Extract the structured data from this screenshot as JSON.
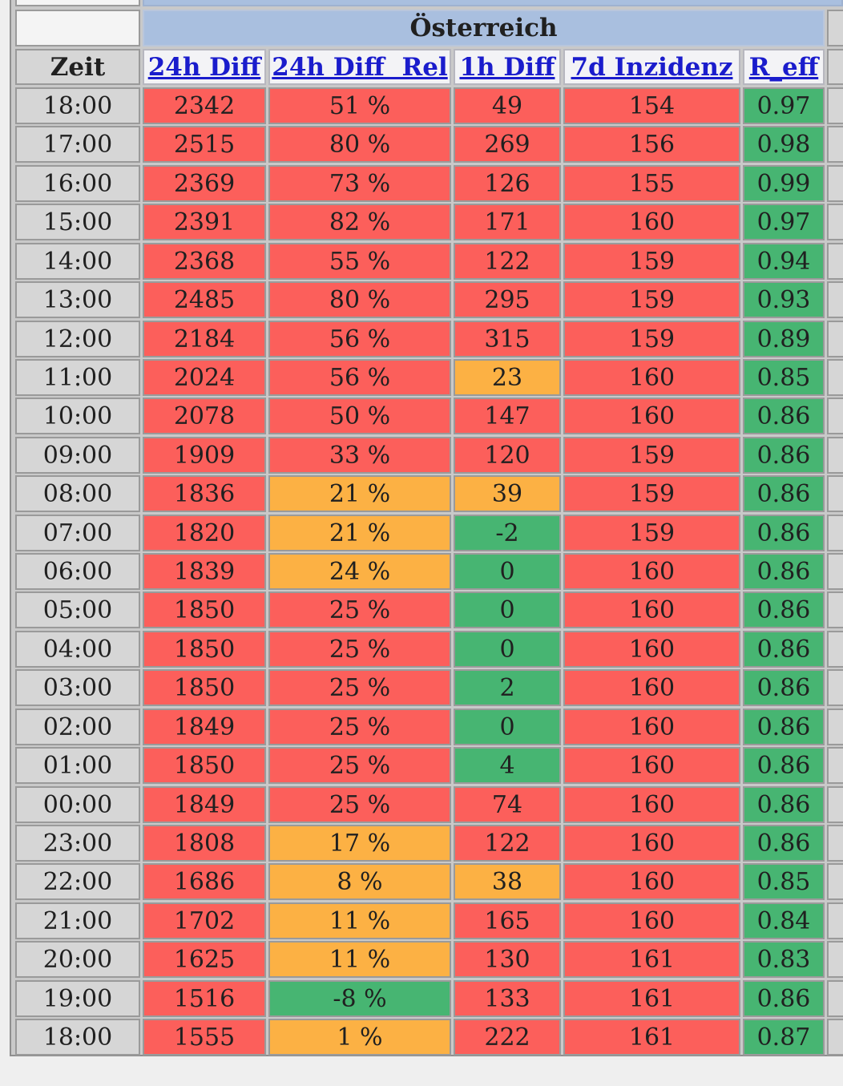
{
  "region_title": "Österreich",
  "columns": {
    "zeit": "Zeit",
    "diff24": "24h Diff",
    "diff24rel": "24h Diff  Rel",
    "diff1h": "1h Diff",
    "inzidenz7d": "7d Inzidenz",
    "reff": "R_eff"
  },
  "colors": {
    "red": "#fc5f5b",
    "orange": "#fcb144",
    "green": "#47b572",
    "header_blue": "#a9bfdf",
    "link_blue": "#1a1ccc"
  },
  "rows": [
    {
      "zeit": "18:00",
      "diff24": "2342",
      "diff24rel": "51 %",
      "diff1h": "49",
      "inzidenz7d": "154",
      "reff": "0.97",
      "c": [
        "red",
        "red",
        "red",
        "red",
        "green"
      ]
    },
    {
      "zeit": "17:00",
      "diff24": "2515",
      "diff24rel": "80 %",
      "diff1h": "269",
      "inzidenz7d": "156",
      "reff": "0.98",
      "c": [
        "red",
        "red",
        "red",
        "red",
        "green"
      ]
    },
    {
      "zeit": "16:00",
      "diff24": "2369",
      "diff24rel": "73 %",
      "diff1h": "126",
      "inzidenz7d": "155",
      "reff": "0.99",
      "c": [
        "red",
        "red",
        "red",
        "red",
        "green"
      ]
    },
    {
      "zeit": "15:00",
      "diff24": "2391",
      "diff24rel": "82 %",
      "diff1h": "171",
      "inzidenz7d": "160",
      "reff": "0.97",
      "c": [
        "red",
        "red",
        "red",
        "red",
        "green"
      ]
    },
    {
      "zeit": "14:00",
      "diff24": "2368",
      "diff24rel": "55 %",
      "diff1h": "122",
      "inzidenz7d": "159",
      "reff": "0.94",
      "c": [
        "red",
        "red",
        "red",
        "red",
        "green"
      ]
    },
    {
      "zeit": "13:00",
      "diff24": "2485",
      "diff24rel": "80 %",
      "diff1h": "295",
      "inzidenz7d": "159",
      "reff": "0.93",
      "c": [
        "red",
        "red",
        "red",
        "red",
        "green"
      ]
    },
    {
      "zeit": "12:00",
      "diff24": "2184",
      "diff24rel": "56 %",
      "diff1h": "315",
      "inzidenz7d": "159",
      "reff": "0.89",
      "c": [
        "red",
        "red",
        "red",
        "red",
        "green"
      ]
    },
    {
      "zeit": "11:00",
      "diff24": "2024",
      "diff24rel": "56 %",
      "diff1h": "23",
      "inzidenz7d": "160",
      "reff": "0.85",
      "c": [
        "red",
        "red",
        "orange",
        "red",
        "green"
      ]
    },
    {
      "zeit": "10:00",
      "diff24": "2078",
      "diff24rel": "50 %",
      "diff1h": "147",
      "inzidenz7d": "160",
      "reff": "0.86",
      "c": [
        "red",
        "red",
        "red",
        "red",
        "green"
      ]
    },
    {
      "zeit": "09:00",
      "diff24": "1909",
      "diff24rel": "33 %",
      "diff1h": "120",
      "inzidenz7d": "159",
      "reff": "0.86",
      "c": [
        "red",
        "red",
        "red",
        "red",
        "green"
      ]
    },
    {
      "zeit": "08:00",
      "diff24": "1836",
      "diff24rel": "21 %",
      "diff1h": "39",
      "inzidenz7d": "159",
      "reff": "0.86",
      "c": [
        "red",
        "orange",
        "orange",
        "red",
        "green"
      ]
    },
    {
      "zeit": "07:00",
      "diff24": "1820",
      "diff24rel": "21 %",
      "diff1h": "-2",
      "inzidenz7d": "159",
      "reff": "0.86",
      "c": [
        "red",
        "orange",
        "green",
        "red",
        "green"
      ]
    },
    {
      "zeit": "06:00",
      "diff24": "1839",
      "diff24rel": "24 %",
      "diff1h": "0",
      "inzidenz7d": "160",
      "reff": "0.86",
      "c": [
        "red",
        "orange",
        "green",
        "red",
        "green"
      ]
    },
    {
      "zeit": "05:00",
      "diff24": "1850",
      "diff24rel": "25 %",
      "diff1h": "0",
      "inzidenz7d": "160",
      "reff": "0.86",
      "c": [
        "red",
        "red",
        "green",
        "red",
        "green"
      ]
    },
    {
      "zeit": "04:00",
      "diff24": "1850",
      "diff24rel": "25 %",
      "diff1h": "0",
      "inzidenz7d": "160",
      "reff": "0.86",
      "c": [
        "red",
        "red",
        "green",
        "red",
        "green"
      ]
    },
    {
      "zeit": "03:00",
      "diff24": "1850",
      "diff24rel": "25 %",
      "diff1h": "2",
      "inzidenz7d": "160",
      "reff": "0.86",
      "c": [
        "red",
        "red",
        "green",
        "red",
        "green"
      ]
    },
    {
      "zeit": "02:00",
      "diff24": "1849",
      "diff24rel": "25 %",
      "diff1h": "0",
      "inzidenz7d": "160",
      "reff": "0.86",
      "c": [
        "red",
        "red",
        "green",
        "red",
        "green"
      ]
    },
    {
      "zeit": "01:00",
      "diff24": "1850",
      "diff24rel": "25 %",
      "diff1h": "4",
      "inzidenz7d": "160",
      "reff": "0.86",
      "c": [
        "red",
        "red",
        "green",
        "red",
        "green"
      ]
    },
    {
      "zeit": "00:00",
      "diff24": "1849",
      "diff24rel": "25 %",
      "diff1h": "74",
      "inzidenz7d": "160",
      "reff": "0.86",
      "c": [
        "red",
        "red",
        "red",
        "red",
        "green"
      ]
    },
    {
      "zeit": "23:00",
      "diff24": "1808",
      "diff24rel": "17 %",
      "diff1h": "122",
      "inzidenz7d": "160",
      "reff": "0.86",
      "c": [
        "red",
        "orange",
        "red",
        "red",
        "green"
      ]
    },
    {
      "zeit": "22:00",
      "diff24": "1686",
      "diff24rel": "8 %",
      "diff1h": "38",
      "inzidenz7d": "160",
      "reff": "0.85",
      "c": [
        "red",
        "orange",
        "orange",
        "red",
        "green"
      ]
    },
    {
      "zeit": "21:00",
      "diff24": "1702",
      "diff24rel": "11 %",
      "diff1h": "165",
      "inzidenz7d": "160",
      "reff": "0.84",
      "c": [
        "red",
        "orange",
        "red",
        "red",
        "green"
      ]
    },
    {
      "zeit": "20:00",
      "diff24": "1625",
      "diff24rel": "11 %",
      "diff1h": "130",
      "inzidenz7d": "161",
      "reff": "0.83",
      "c": [
        "red",
        "orange",
        "red",
        "red",
        "green"
      ]
    },
    {
      "zeit": "19:00",
      "diff24": "1516",
      "diff24rel": "-8 %",
      "diff1h": "133",
      "inzidenz7d": "161",
      "reff": "0.86",
      "c": [
        "red",
        "green",
        "red",
        "red",
        "green"
      ]
    },
    {
      "zeit": "18:00",
      "diff24": "1555",
      "diff24rel": "1 %",
      "diff1h": "222",
      "inzidenz7d": "161",
      "reff": "0.87",
      "c": [
        "red",
        "orange",
        "red",
        "red",
        "green"
      ]
    }
  ]
}
